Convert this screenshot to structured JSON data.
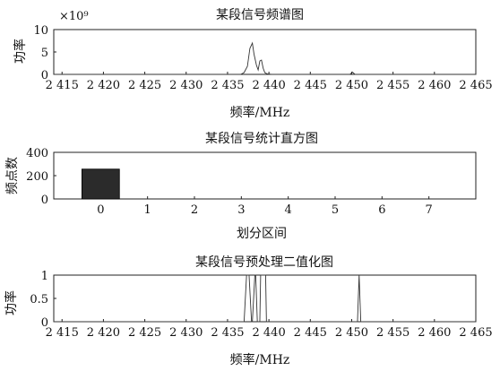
{
  "chart_data": [
    {
      "type": "line",
      "title": "某段信号频谱图",
      "xlabel": "频率/MHz",
      "ylabel": "功率",
      "y_multiplier": "×10⁹",
      "xlim": [
        2414,
        2465
      ],
      "ylim": [
        0,
        10
      ],
      "xticks": [
        2415,
        2420,
        2425,
        2430,
        2435,
        2440,
        2445,
        2450,
        2455,
        2460,
        2465
      ],
      "xtick_labels": [
        "2 415",
        "2 420",
        "2 425",
        "2 430",
        "2 435",
        "2 440",
        "2 445",
        "2 450",
        "2 455",
        "2 460",
        "2 465"
      ],
      "yticks": [
        0,
        5,
        10
      ],
      "ytick_labels": [
        "0",
        "5",
        "10"
      ],
      "series": [
        {
          "x": [
            2414,
            2436.6,
            2437.0,
            2437.4,
            2437.7,
            2438.0,
            2438.2,
            2438.5,
            2438.7,
            2438.9,
            2439.1,
            2439.3,
            2439.5,
            2439.8,
            2440.3,
            2449.8,
            2450.1,
            2450.4,
            2465
          ],
          "y": [
            0,
            0,
            0.4,
            1.8,
            5.8,
            7.0,
            4.5,
            2.0,
            1.0,
            3.0,
            3.2,
            1.4,
            0.4,
            0.1,
            0,
            0,
            0.5,
            0,
            0
          ]
        }
      ]
    },
    {
      "type": "bar",
      "title": "某段信号统计直方图",
      "xlabel": "划分区间",
      "ylabel": "频点数",
      "xlim": [
        -1,
        8
      ],
      "ylim": [
        0,
        400
      ],
      "xticks": [
        0,
        1,
        2,
        3,
        4,
        5,
        6,
        7
      ],
      "xtick_labels": [
        "0",
        "1",
        "2",
        "3",
        "4",
        "5",
        "6",
        "7"
      ],
      "yticks": [
        0,
        200,
        400
      ],
      "ytick_labels": [
        "0",
        "200",
        "400"
      ],
      "categories": [
        "0",
        "1",
        "2",
        "3",
        "4",
        "5",
        "6",
        "7"
      ],
      "values": [
        256,
        0,
        0,
        0,
        0,
        0,
        0,
        0
      ],
      "bar_color": "#2b2b2b"
    },
    {
      "type": "line",
      "title": "某段信号预处理二值化图",
      "xlabel": "频率/MHz",
      "ylabel": "功率",
      "xlim": [
        2414,
        2465
      ],
      "ylim": [
        0,
        1
      ],
      "xticks": [
        2415,
        2420,
        2425,
        2430,
        2435,
        2440,
        2445,
        2450,
        2455,
        2460,
        2465
      ],
      "xtick_labels": [
        "2 415",
        "2 420",
        "2 425",
        "2 430",
        "2 435",
        "2 440",
        "2 445",
        "2 450",
        "2 455",
        "2 460",
        "2 465"
      ],
      "yticks": [
        0,
        0.5,
        1
      ],
      "ytick_labels": [
        "0",
        "0.5",
        "1"
      ],
      "series": [
        {
          "x": [
            2414,
            2437.0,
            2437.3,
            2437.6,
            2437.9,
            2438.0,
            2438.3,
            2438.4,
            2438.6,
            2438.9,
            2439.0,
            2439.6,
            2439.7,
            2450.7,
            2450.9,
            2451.1,
            2465
          ],
          "y": [
            0,
            0,
            1,
            1,
            0,
            0,
            1,
            1,
            0,
            0,
            1,
            1,
            0,
            0,
            1,
            0,
            0
          ]
        }
      ]
    }
  ]
}
